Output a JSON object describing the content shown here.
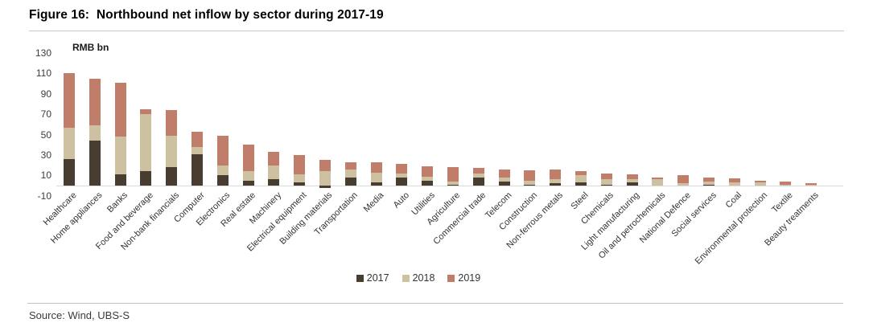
{
  "header": {
    "title": "Figure 16:  Northbound net inflow by sector during 2017-19"
  },
  "footer": {
    "source": "Source: Wind, UBS-S"
  },
  "chart_data": {
    "type": "bar",
    "stacked": true,
    "title": "Figure 16:  Northbound net inflow by sector during 2017-19",
    "unit_label": "RMB bn",
    "ylabel": "RMB bn",
    "xlabel": "",
    "ylim": [
      -10,
      130
    ],
    "y_ticks": [
      130,
      110,
      90,
      70,
      50,
      30,
      10,
      -10
    ],
    "grid": false,
    "legend_position": "bottom-center",
    "categories": [
      "Healthcare",
      "Home appliances",
      "Banks",
      "Food and beverage",
      "Non-bank financials",
      "Computer",
      "Electronics",
      "Real estate",
      "Machinery",
      "Electrical equipment",
      "Building materials",
      "Transportation",
      "Media",
      "Auto",
      "Utilities",
      "Agriculture",
      "Commercial trade",
      "Telecom",
      "Construction",
      "Non-ferrous metals",
      "Steel",
      "Chemicals",
      "Light manufacturing",
      "Oil and petrochemicals",
      "National Defence",
      "Social services",
      "Coal",
      "Environmental protection",
      "Textile",
      "Beauty treatments"
    ],
    "series": [
      {
        "name": "2017",
        "color": "#483d31",
        "values": [
          26,
          44,
          11,
          14,
          18,
          31,
          10,
          5,
          6,
          3,
          -2,
          8,
          3,
          8,
          5,
          1,
          8,
          4,
          1,
          2,
          3,
          1,
          3,
          0,
          0,
          1,
          0,
          0,
          0,
          0
        ]
      },
      {
        "name": "2018",
        "color": "#cdc1a2",
        "values": [
          31,
          15,
          37,
          56,
          31,
          7,
          10,
          9,
          14,
          8,
          14,
          8,
          10,
          4,
          4,
          3,
          4,
          4,
          4,
          4,
          7,
          5,
          3,
          6,
          2,
          3,
          3,
          3,
          1,
          0.5
        ]
      },
      {
        "name": "2019",
        "color": "#bf7d6a",
        "values": [
          53,
          46,
          53,
          5,
          25,
          15,
          29,
          26,
          13,
          19,
          11,
          7,
          10,
          9,
          10,
          14,
          5,
          8,
          10,
          10,
          4,
          6,
          5,
          2,
          8,
          4,
          4,
          2,
          3,
          2
        ]
      }
    ]
  }
}
